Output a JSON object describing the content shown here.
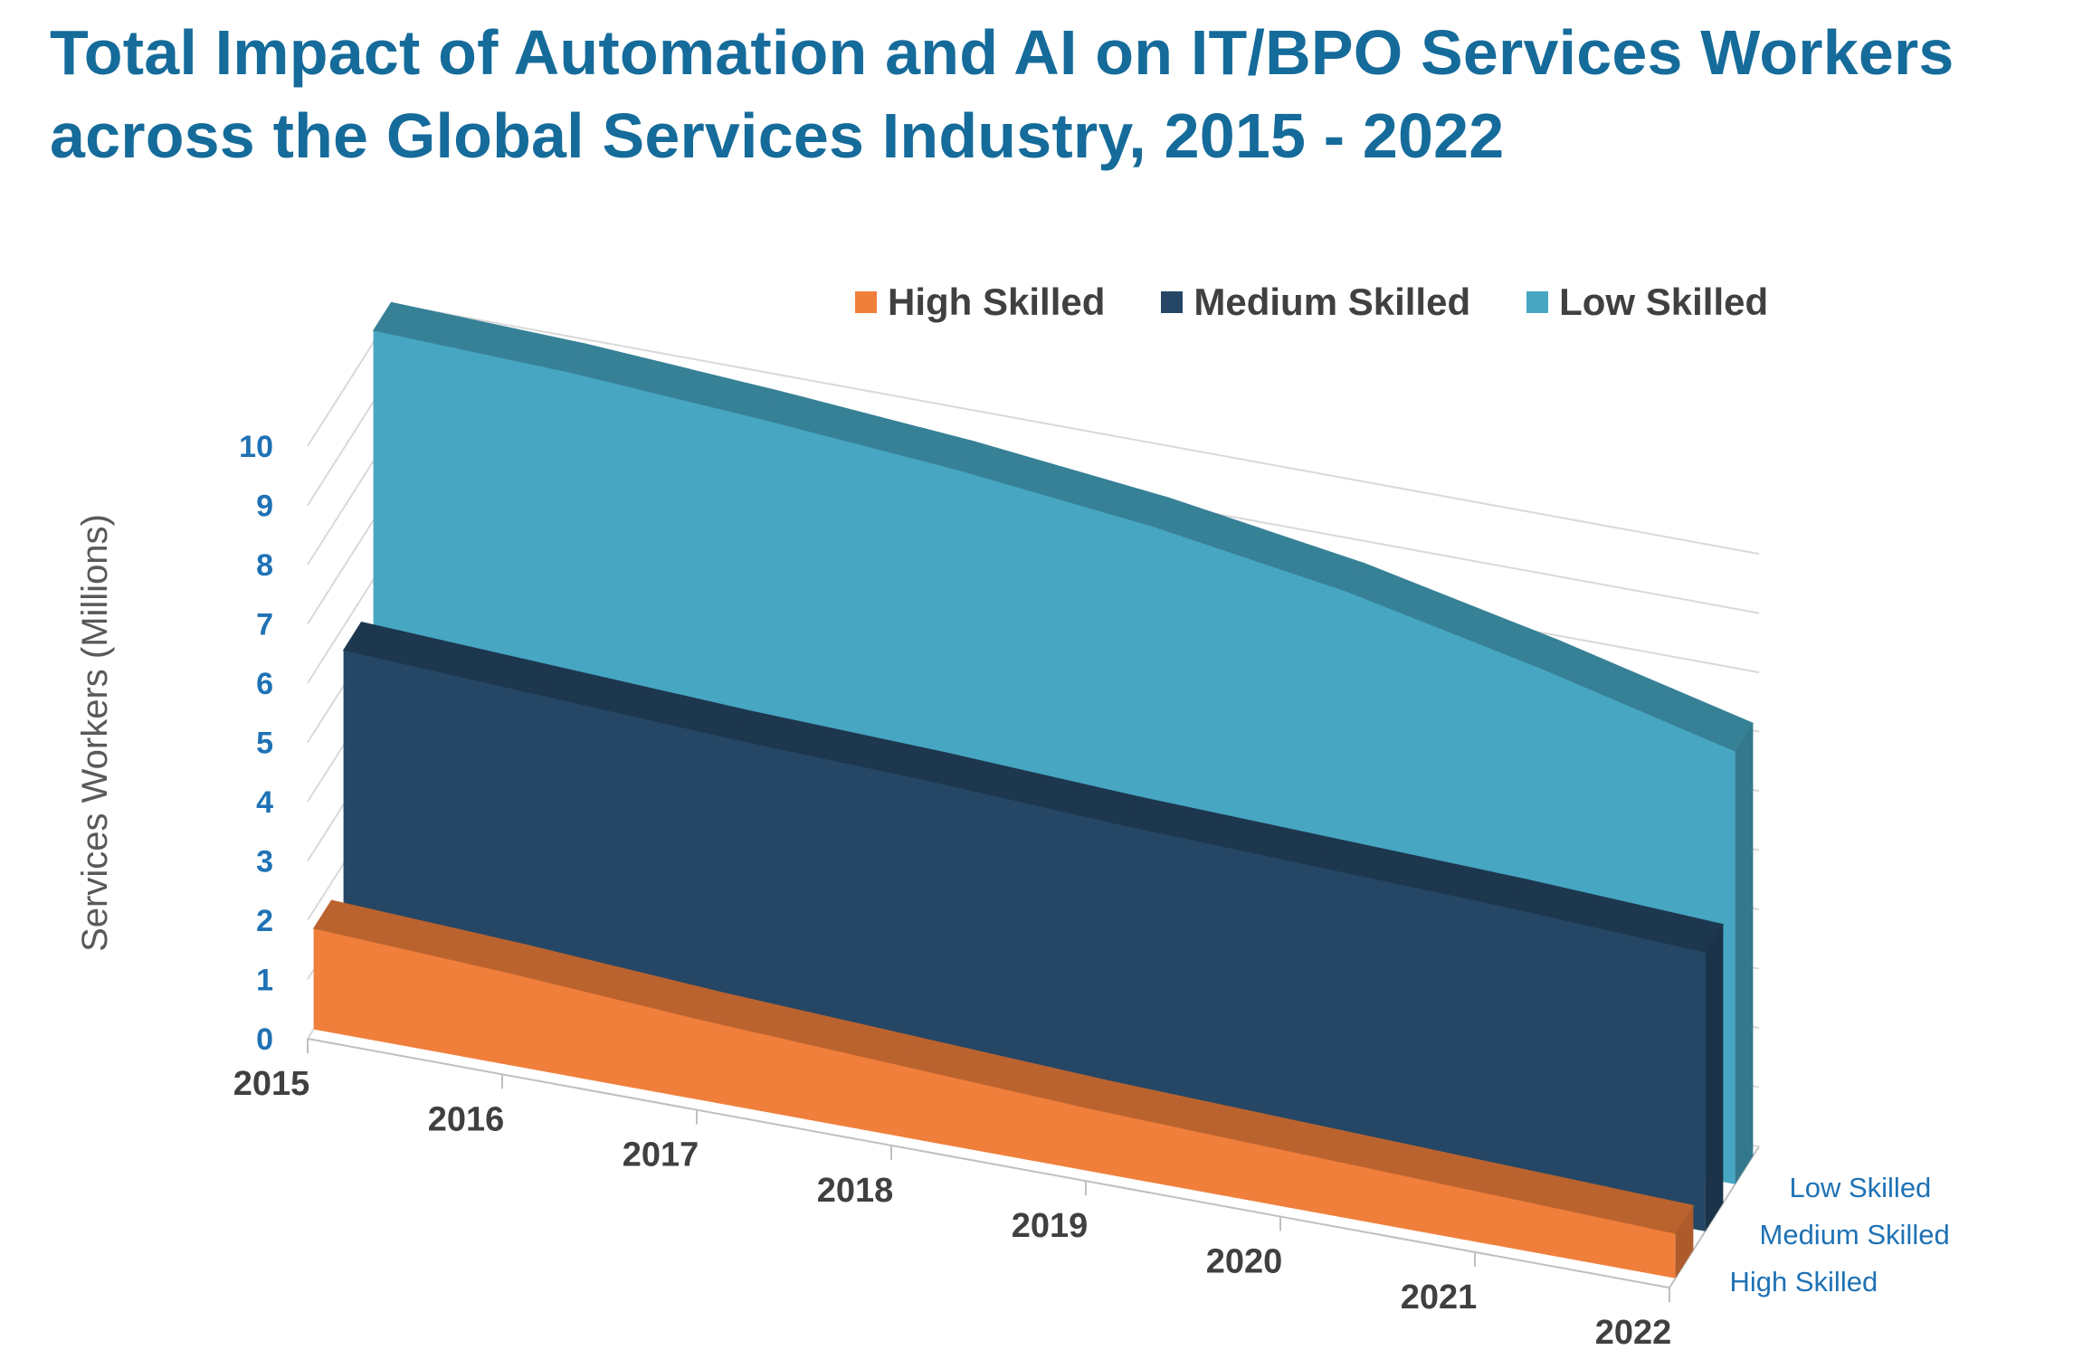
{
  "title": {
    "line1": "Total Impact of Automation and AI on IT/BPO Services Workers",
    "line2": "across the Global Services Industry, 2015 - 2022"
  },
  "legend": [
    {
      "label": "High Skilled",
      "color": "#f07f3c"
    },
    {
      "label": "Medium Skilled",
      "color": "#254765"
    },
    {
      "label": "Low Skilled",
      "color": "#47a6c2"
    }
  ],
  "chart_data": {
    "type": "area",
    "subtype": "3d-area",
    "title": "Total Impact of Automation and AI on IT/BPO Services Workers across the Global Services Industry, 2015 - 2022",
    "ylabel": "Services Workers (Millions)",
    "xlabel": "",
    "ylim": [
      0,
      10
    ],
    "yticks": [
      "0",
      "1",
      "2",
      "3",
      "4",
      "5",
      "6",
      "7",
      "8",
      "9",
      "10"
    ],
    "categories": [
      "2015",
      "2016",
      "2017",
      "2018",
      "2019",
      "2020",
      "2021",
      "2022"
    ],
    "depth_labels": [
      "High Skilled",
      "Medium Skilled",
      "Low Skilled"
    ],
    "grid": true,
    "legend_position": "top",
    "series": [
      {
        "name": "High Skilled",
        "color": "#f07f3c",
        "values": [
          1.7,
          1.55,
          1.35,
          1.2,
          1.05,
          0.95,
          0.85,
          0.75
        ]
      },
      {
        "name": "Medium Skilled",
        "color": "#254765",
        "values": [
          5.6,
          5.45,
          5.3,
          5.2,
          5.05,
          4.95,
          4.85,
          4.7
        ]
      },
      {
        "name": "Low Skilled",
        "color": "#47a6c2",
        "values": [
          10.2,
          10.1,
          9.9,
          9.65,
          9.3,
          8.8,
          8.1,
          7.3
        ]
      }
    ]
  }
}
